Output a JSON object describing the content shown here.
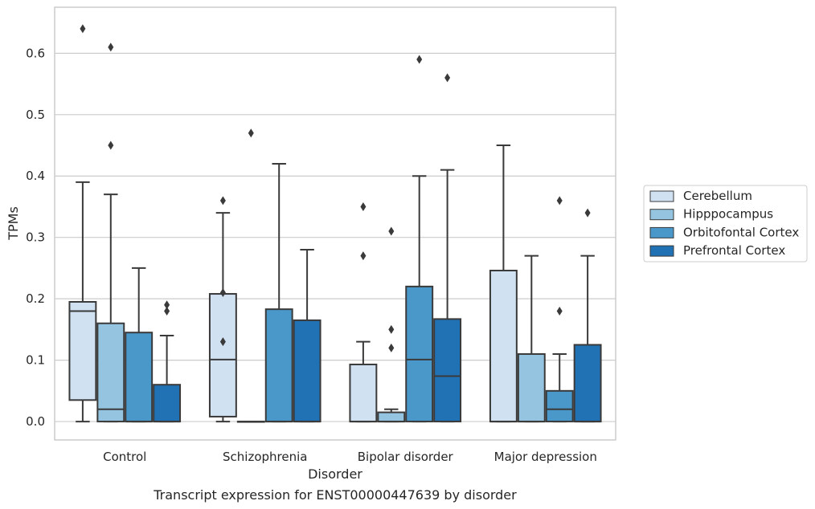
{
  "chart_data": {
    "type": "box",
    "title": "Transcript expression for ENST00000447639 by disorder",
    "xlabel": "Disorder",
    "ylabel": "TPMs",
    "ylim": [
      -0.03,
      0.675
    ],
    "yticks": [
      "0.0",
      "0.1",
      "0.2",
      "0.3",
      "0.4",
      "0.5",
      "0.6"
    ],
    "grid": true,
    "legend_position": "right",
    "categories": [
      "Control",
      "Schizophrenia",
      "Bipolar disorder",
      "Major depression"
    ],
    "series": [
      {
        "name": "Cerebellum",
        "color": "#d0e1f2",
        "boxes": [
          {
            "whislo": 0.0,
            "q1": 0.035,
            "med": 0.18,
            "q3": 0.195,
            "whishi": 0.39,
            "fliers": [
              0.64
            ]
          },
          {
            "whislo": 0.0,
            "q1": 0.008,
            "med": 0.101,
            "q3": 0.208,
            "whishi": 0.34,
            "fliers": [
              0.36,
              0.21,
              0.13
            ]
          },
          {
            "whislo": 0.0,
            "q1": 0.0,
            "med": 0.0,
            "q3": 0.093,
            "whishi": 0.13,
            "fliers": [
              0.35,
              0.27
            ]
          },
          {
            "whislo": 0.0,
            "q1": 0.0,
            "med": 0.0,
            "q3": 0.246,
            "whishi": 0.45,
            "fliers": []
          }
        ]
      },
      {
        "name": "Hipppocampus",
        "color": "#94c4df",
        "boxes": [
          {
            "whislo": 0.0,
            "q1": 0.0,
            "med": 0.02,
            "q3": 0.16,
            "whishi": 0.37,
            "fliers": [
              0.61,
              0.45
            ]
          },
          {
            "whislo": 0.0,
            "q1": 0.0,
            "med": 0.0,
            "q3": 0.0,
            "whishi": 0.0,
            "fliers": [
              0.47
            ]
          },
          {
            "whislo": 0.0,
            "q1": 0.0,
            "med": 0.0,
            "q3": 0.015,
            "whishi": 0.02,
            "fliers": [
              0.31,
              0.15,
              0.12
            ]
          },
          {
            "whislo": 0.0,
            "q1": 0.0,
            "med": 0.0,
            "q3": 0.11,
            "whishi": 0.27,
            "fliers": []
          }
        ]
      },
      {
        "name": "Orbitofontal Cortex",
        "color": "#4a98c9",
        "boxes": [
          {
            "whislo": 0.0,
            "q1": 0.0,
            "med": 0.0,
            "q3": 0.145,
            "whishi": 0.25,
            "fliers": []
          },
          {
            "whislo": 0.0,
            "q1": 0.0,
            "med": 0.0,
            "q3": 0.183,
            "whishi": 0.42,
            "fliers": []
          },
          {
            "whislo": 0.0,
            "q1": 0.0,
            "med": 0.101,
            "q3": 0.22,
            "whishi": 0.4,
            "fliers": [
              0.59
            ]
          },
          {
            "whislo": 0.0,
            "q1": 0.0,
            "med": 0.02,
            "q3": 0.05,
            "whishi": 0.11,
            "fliers": [
              0.36,
              0.18
            ]
          }
        ]
      },
      {
        "name": "Prefrontal Cortex",
        "color": "#2171b5",
        "boxes": [
          {
            "whislo": 0.0,
            "q1": 0.0,
            "med": 0.0,
            "q3": 0.06,
            "whishi": 0.14,
            "fliers": [
              0.19,
              0.18
            ]
          },
          {
            "whislo": 0.0,
            "q1": 0.0,
            "med": 0.0,
            "q3": 0.165,
            "whishi": 0.28,
            "fliers": []
          },
          {
            "whislo": 0.0,
            "q1": 0.0,
            "med": 0.074,
            "q3": 0.167,
            "whishi": 0.41,
            "fliers": [
              0.56
            ]
          },
          {
            "whislo": 0.0,
            "q1": 0.0,
            "med": 0.0,
            "q3": 0.125,
            "whishi": 0.27,
            "fliers": [
              0.34
            ]
          }
        ]
      }
    ]
  }
}
